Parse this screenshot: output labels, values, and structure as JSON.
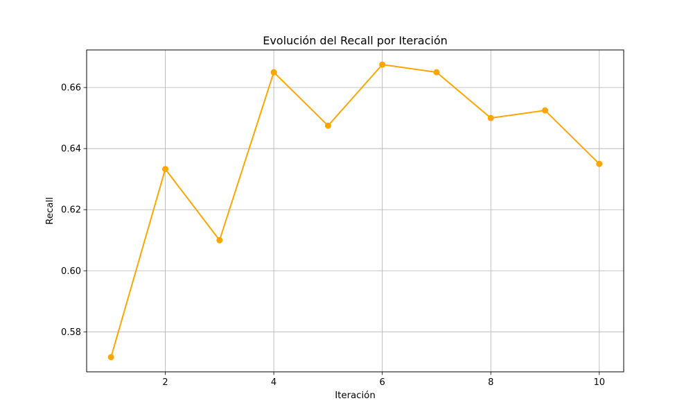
{
  "chart_data": {
    "type": "line",
    "title": "Evolución del Recall por Iteración",
    "xlabel": "Iteración",
    "ylabel": "Recall",
    "x": [
      1,
      2,
      3,
      4,
      5,
      6,
      7,
      8,
      9,
      10
    ],
    "series": [
      {
        "values": [
          0.5717,
          0.6333,
          0.61,
          0.665,
          0.6475,
          0.6675,
          0.665,
          0.65,
          0.6525,
          0.635
        ]
      }
    ],
    "xlim": [
      0.55,
      10.45
    ],
    "ylim": [
      0.5669,
      0.6723
    ],
    "xticks": [
      2,
      4,
      6,
      8,
      10
    ],
    "yticks": [
      0.58,
      0.6,
      0.62,
      0.64,
      0.66
    ],
    "xtick_labels": [
      "2",
      "4",
      "6",
      "8",
      "10"
    ],
    "ytick_labels": [
      "0.58",
      "0.60",
      "0.62",
      "0.64",
      "0.66"
    ],
    "grid": true,
    "line_color": "#ffa500",
    "marker": "circle"
  }
}
